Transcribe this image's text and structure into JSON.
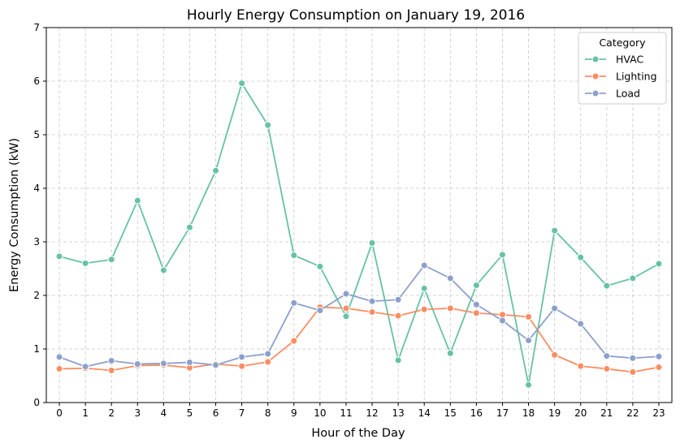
{
  "chart_data": {
    "type": "line",
    "title": "Hourly Energy Consumption on January 19, 2016",
    "xlabel": "Hour of the Day",
    "ylabel": "Energy Consumption (kW)",
    "x": [
      0,
      1,
      2,
      3,
      4,
      5,
      6,
      7,
      8,
      9,
      10,
      11,
      12,
      13,
      14,
      15,
      16,
      17,
      18,
      19,
      20,
      21,
      22,
      23
    ],
    "x_tick_labels": [
      "0",
      "1",
      "2",
      "3",
      "4",
      "5",
      "6",
      "7",
      "8",
      "9",
      "10",
      "11",
      "12",
      "13",
      "14",
      "15",
      "16",
      "17",
      "18",
      "19",
      "20",
      "21",
      "22",
      "23"
    ],
    "ylim": [
      0,
      7
    ],
    "y_ticks": [
      0,
      1,
      2,
      3,
      4,
      5,
      6,
      7
    ],
    "y_tick_labels": [
      "0",
      "1",
      "2",
      "3",
      "4",
      "5",
      "6",
      "7"
    ],
    "grid": true,
    "legend": {
      "title": "Category",
      "placement": "top-right"
    },
    "series": [
      {
        "name": "HVAC",
        "color": "#66c2a5",
        "values": [
          2.73,
          2.6,
          2.67,
          3.77,
          2.47,
          3.27,
          4.33,
          5.96,
          5.18,
          2.75,
          2.54,
          1.61,
          2.98,
          0.79,
          2.13,
          0.92,
          2.19,
          2.76,
          0.33,
          3.21,
          2.71,
          2.18,
          2.32,
          2.59
        ]
      },
      {
        "name": "Lighting",
        "color": "#fc8d62",
        "values": [
          0.63,
          0.64,
          0.6,
          0.69,
          0.7,
          0.65,
          0.72,
          0.68,
          0.76,
          1.15,
          1.78,
          1.76,
          1.69,
          1.62,
          1.74,
          1.76,
          1.67,
          1.64,
          1.6,
          0.89,
          0.68,
          0.63,
          0.57,
          0.66
        ]
      },
      {
        "name": "Load",
        "color": "#8da0cb",
        "values": [
          0.85,
          0.67,
          0.78,
          0.72,
          0.73,
          0.75,
          0.7,
          0.85,
          0.91,
          1.86,
          1.72,
          2.03,
          1.89,
          1.92,
          2.56,
          2.32,
          1.83,
          1.53,
          1.16,
          1.76,
          1.47,
          0.87,
          0.83,
          0.86
        ]
      }
    ]
  }
}
